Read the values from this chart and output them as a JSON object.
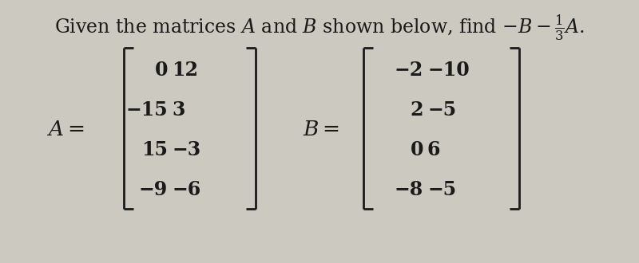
{
  "background_color": "#ccc9c0",
  "text_color": "#1a1a1a",
  "A_matrix": [
    [
      "0",
      "12"
    ],
    [
      "−15",
      "3"
    ],
    [
      "15",
      "−3"
    ],
    [
      "−9",
      "−6"
    ]
  ],
  "B_matrix": [
    [
      "−2",
      "−10"
    ],
    [
      "2",
      "−5"
    ],
    [
      "0",
      "6"
    ],
    [
      "−8",
      "−5"
    ]
  ],
  "matrix_fontsize": 17,
  "title_fontsize": 17,
  "label_fontsize": 19
}
